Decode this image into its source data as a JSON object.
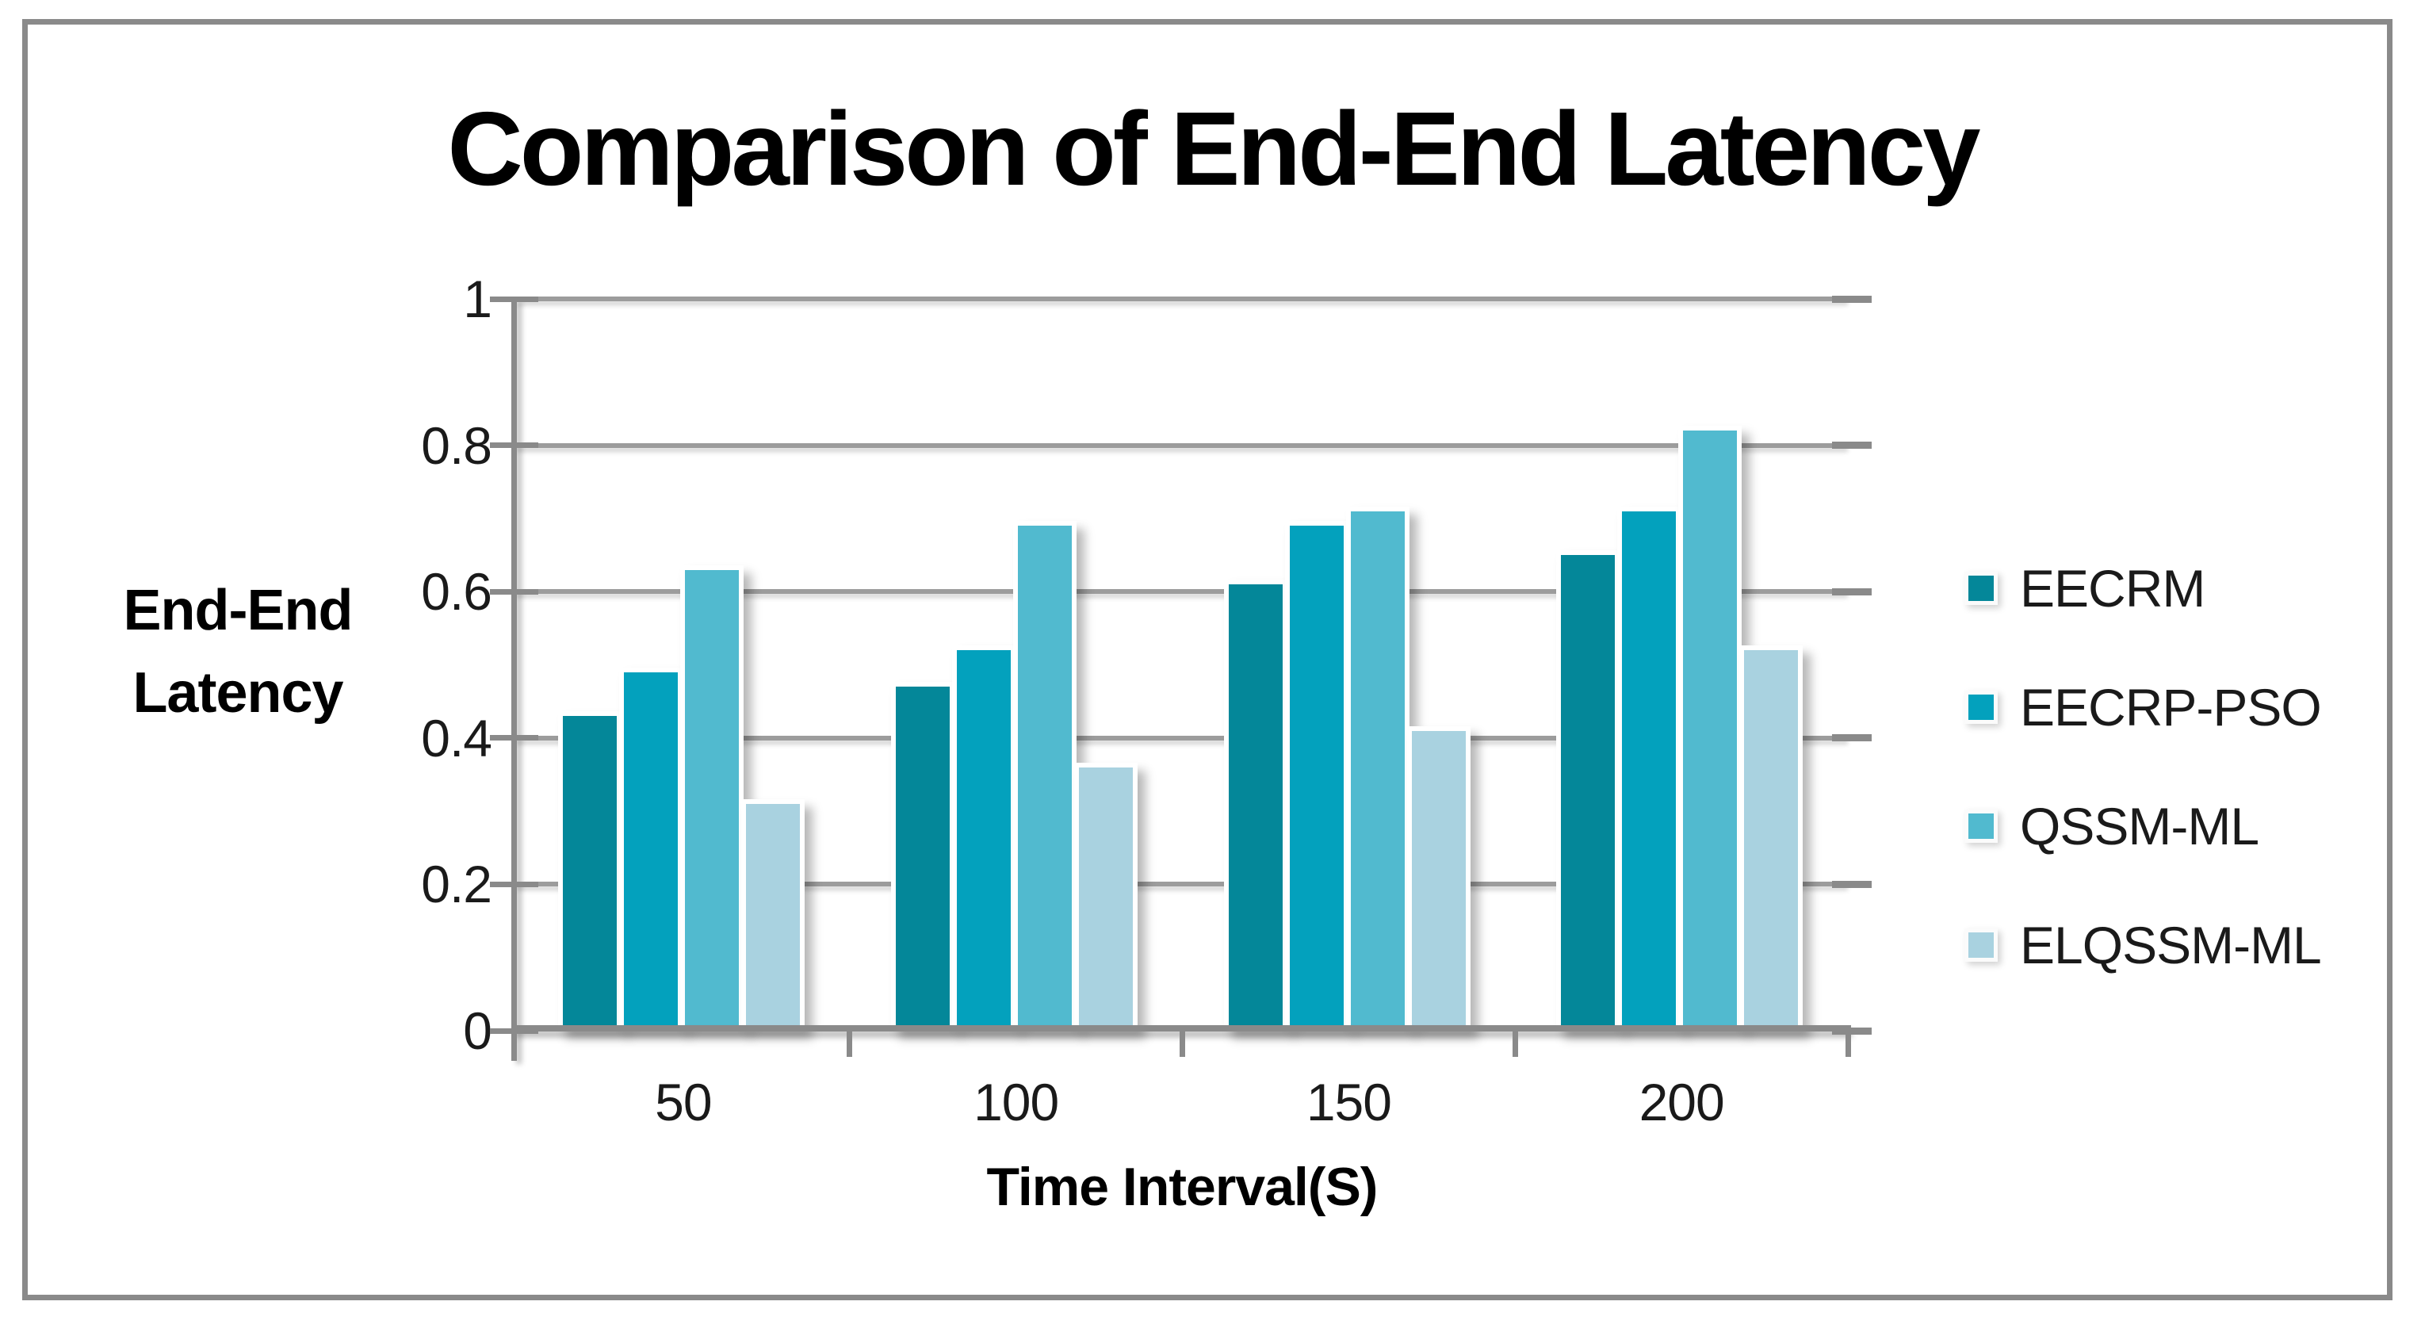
{
  "title": "Comparison of End-End Latency",
  "y_axis": {
    "title_lines": [
      "End-End",
      "Latency"
    ],
    "tick_labels": [
      "1",
      "0.8",
      "0.6",
      "0.4",
      "0.2",
      "0"
    ],
    "min": 0,
    "max": 1
  },
  "x_axis": {
    "title": "Time Interval(S)",
    "categories": [
      "50",
      "100",
      "150",
      "200"
    ]
  },
  "colors": {
    "grid": "#9c9c9c",
    "axis": "#8a8a8a",
    "frame": "#8a8a8a",
    "text": "#1a1a1a"
  },
  "chart_data": {
    "type": "bar",
    "title": "Comparison of End-End Latency",
    "categories": [
      "50",
      "100",
      "150",
      "200"
    ],
    "series": [
      {
        "name": "EECRM",
        "color": "#048799",
        "values": [
          0.43,
          0.47,
          0.61,
          0.65
        ]
      },
      {
        "name": "EECRP-PSO",
        "color": "#03A1BD",
        "values": [
          0.49,
          0.52,
          0.69,
          0.71
        ]
      },
      {
        "name": "QSSM-ML",
        "color": "#51BACF",
        "values": [
          0.63,
          0.69,
          0.71,
          0.82
        ]
      },
      {
        "name": "ELQSSM-ML",
        "color": "#A9D2E0",
        "values": [
          0.31,
          0.36,
          0.41,
          0.52
        ]
      }
    ],
    "xlabel": "Time Interval(S)",
    "ylabel": "End-End Latency",
    "ylim": [
      0,
      1
    ],
    "yticks": [
      0,
      0.2,
      0.4,
      0.6,
      0.8,
      1
    ],
    "grid": true,
    "legend_position": "right"
  }
}
